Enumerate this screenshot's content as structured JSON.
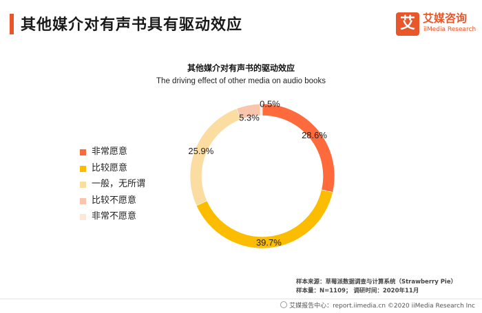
{
  "header": {
    "title": "其他媒介对有声书具有驱动效应",
    "accent_color": "#e8562a"
  },
  "logo": {
    "glyph": "艾",
    "name_cn": "艾媒咨询",
    "name_en": "iiMedia Research",
    "color": "#e8562a"
  },
  "chart_data": {
    "type": "pie",
    "donut": true,
    "title": "其他媒介对有声书的驱动效应",
    "subtitle": "The driving effect of other media on audio books",
    "legend_position": "left",
    "categories": [
      "非常愿意",
      "比较愿意",
      "一般，无所谓",
      "比较不愿意",
      "非常不愿意"
    ],
    "values": [
      28.6,
      39.7,
      25.9,
      5.3,
      0.5
    ],
    "labels": [
      "28.6%",
      "39.7%",
      "25.9%",
      "5.3%",
      "0.5%"
    ],
    "colors": [
      "#ff6a3d",
      "#fcbd00",
      "#fcdda1",
      "#f9c6ad",
      "#fde8d8"
    ]
  },
  "source": {
    "line1": "样本来源：草莓派数据调查与计算系统（Strawberry Pie）",
    "line2": "样本量：N=1109；  调研时间：2020年11月"
  },
  "footer": {
    "text": "艾媒报告中心：report.iimedia.cn  ©2020 iiMedia Research Inc"
  }
}
